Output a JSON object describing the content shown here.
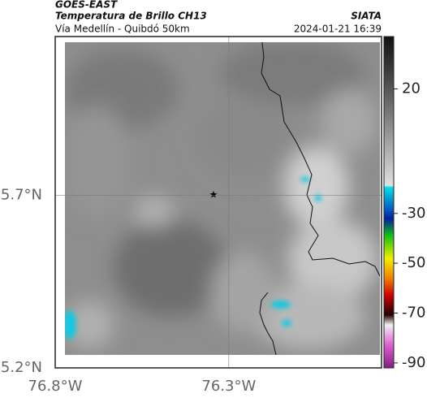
{
  "header": {
    "satellite": "GOES-EAST",
    "title": "Temperatura de Brillo CH13",
    "source": "SIATA",
    "subtitle": "Vía Medellín - Quibdó 50km",
    "timestamp": "2024-01-21 16:39"
  },
  "map": {
    "xlim": [
      -76.8,
      -75.86
    ],
    "ylim": [
      5.2,
      6.16
    ],
    "xticks": [
      {
        "value": -76.8,
        "label": "76.8°W"
      },
      {
        "value": -76.3,
        "label": "76.3°W"
      }
    ],
    "yticks": [
      {
        "value": 5.2,
        "label": "5.2°N"
      },
      {
        "value": 5.7,
        "label": "5.7°N"
      }
    ],
    "grid": true
  },
  "colorbar": {
    "lim": [
      41,
      -92
    ],
    "ticks": [
      20,
      -30,
      -50,
      -70,
      -90
    ]
  }
}
